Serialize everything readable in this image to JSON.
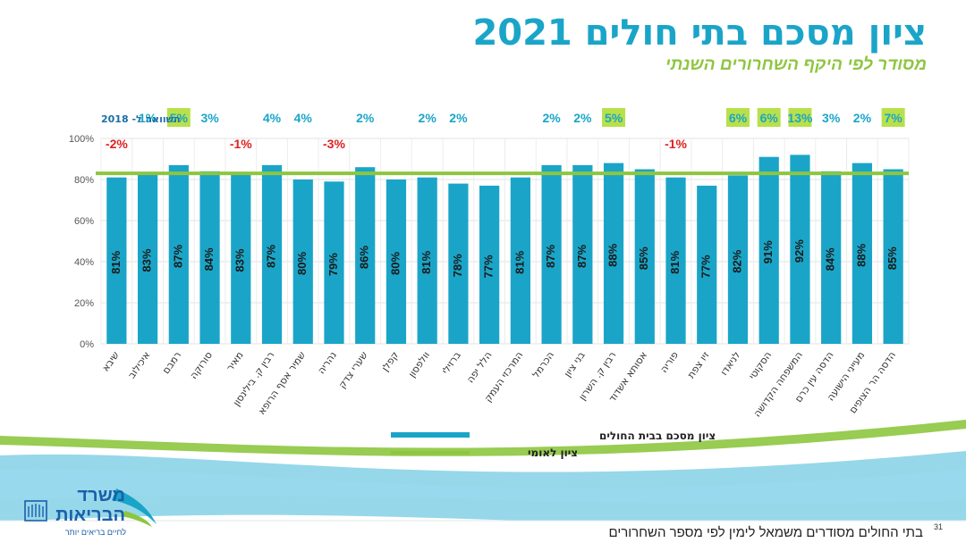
{
  "slide": {
    "title": "ציון מסכם בתי חולים 2021",
    "subtitle": "מסודר לפי היקף השחרורים השנתי",
    "footer": "בתי החולים מסודרים משמאל לימין לפי מספר השחרורים",
    "page_number": "31",
    "logo_line1": "משרד",
    "logo_line2": "הבריאות",
    "logo_tagline": "לחיים בריאים יותר"
  },
  "colors": {
    "bar": "#1aa5c8",
    "national_line": "#8dc63f",
    "negative": "#e02020",
    "positive": "#1aa5c8",
    "highlight_bg": "#b8e04a"
  },
  "chart_data": {
    "type": "bar",
    "categories": [
      "שיבא",
      "איכילוב",
      "רמבם",
      "סורוקה",
      "מאיר",
      "רבין ק. בילינסון",
      "שמיר אסף הרופא",
      "נהריה",
      "שערי צדק",
      "קפלן",
      "וולפסון",
      "ברזילי",
      "הלל יפה",
      "המרכזי העמק",
      "הכרמל",
      "בני ציון",
      "רבין ק. השרון",
      "אסותא אשדוד",
      "פוריה",
      "זיו צפת",
      "לניאדו",
      "הסקוטי",
      "המשפחה הקדושה",
      "הדסה עין כרם",
      "מעייני הישועה",
      "הדסה הר הצופים"
    ],
    "series": [
      {
        "name": "ציון מסכם בבית החולים",
        "values": [
          81,
          83,
          87,
          84,
          83,
          87,
          80,
          79,
          86,
          80,
          81,
          78,
          77,
          81,
          87,
          87,
          88,
          85,
          81,
          77,
          82,
          91,
          92,
          84,
          88,
          85
        ],
        "labels": [
          "81%",
          "83%",
          "87%",
          "84%",
          "83%",
          "87%",
          "80%",
          "79%",
          "86%",
          "80%",
          "81%",
          "78%",
          "77%",
          "81%",
          "87%",
          "87%",
          "88%",
          "85%",
          "81%",
          "77%",
          "82%",
          "91%",
          "92%",
          "84%",
          "88%",
          "85%"
        ]
      },
      {
        "name": "ציון לאומי",
        "value": 83
      }
    ],
    "comparison_label": "השוואה ל- 2018",
    "comparison": [
      "-2%",
      "1%",
      "5%",
      "3%",
      "-1%",
      "4%",
      "4%",
      "-3%",
      "2%",
      "",
      "2%",
      "2%",
      "",
      "",
      "2%",
      "2%",
      "5%",
      "",
      "-1%",
      "",
      "6%",
      "6%",
      "13%",
      "3%",
      "2%",
      "7%"
    ],
    "comparison_highlight": [
      false,
      false,
      true,
      false,
      false,
      false,
      false,
      false,
      false,
      false,
      false,
      false,
      false,
      false,
      false,
      false,
      true,
      false,
      false,
      false,
      true,
      true,
      true,
      false,
      false,
      true
    ],
    "yticks": [
      "0%",
      "20%",
      "40%",
      "60%",
      "80%",
      "100%"
    ],
    "ylim": [
      0,
      100
    ],
    "legend_position": "bottom"
  }
}
